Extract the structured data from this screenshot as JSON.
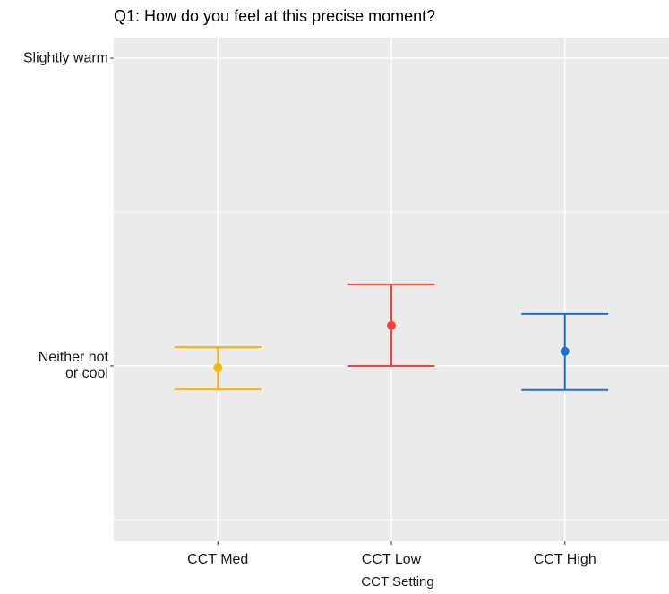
{
  "chart_data": {
    "type": "errorbar",
    "title": "Q1: How do you feel at this precise moment?",
    "x_label": "CCT Setting",
    "categories": [
      "CCT Med",
      "CCT Low",
      "CCT High"
    ],
    "values": [
      -0.006,
      0.131,
      0.047
    ],
    "lower": [
      -0.076,
      0.0,
      -0.078
    ],
    "upper": [
      0.061,
      0.265,
      0.169
    ],
    "colors": [
      "#FFB400",
      "#F8403A",
      "#1F6FCF"
    ],
    "ylim": [
      -0.57,
      1.067
    ],
    "yticks": [
      {
        "value": 0,
        "label": "Neither hot\nor cool"
      },
      {
        "value": 1,
        "label": "Slightly warm"
      }
    ],
    "minor_yticks": [
      -0.5,
      0.5
    ],
    "grid": true
  }
}
